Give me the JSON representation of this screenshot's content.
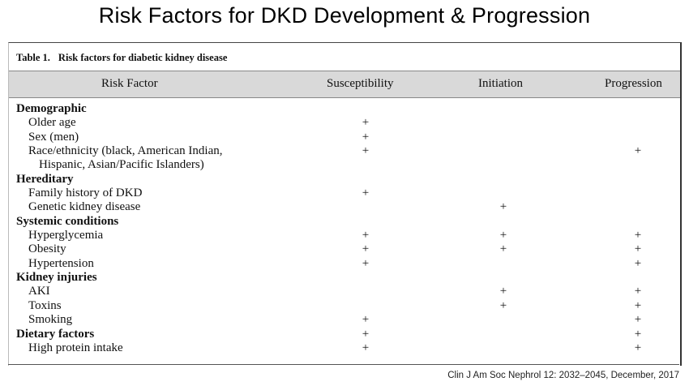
{
  "slide": {
    "title": "Risk Factors for DKD Development & Progression",
    "citation": "Clin J Am Soc Nephrol 12: 2032–2045, December, 2017"
  },
  "table": {
    "caption_label": "Table 1.",
    "caption_title": "Risk factors for diabetic kidney disease",
    "headers": [
      "Risk Factor",
      "Susceptibility",
      "Initiation",
      "Progression"
    ],
    "mark": "+",
    "rows": [
      {
        "type": "group",
        "label": "Demographic",
        "s": false,
        "i": false,
        "p": false
      },
      {
        "type": "item",
        "label": "Older age",
        "s": true,
        "i": false,
        "p": false
      },
      {
        "type": "item",
        "label": "Sex (men)",
        "s": true,
        "i": false,
        "p": false
      },
      {
        "type": "item",
        "label": "Race/ethnicity (black, American Indian,",
        "s": true,
        "i": false,
        "p": true
      },
      {
        "type": "cont",
        "label": "Hispanic, Asian/Pacific Islanders)",
        "s": false,
        "i": false,
        "p": false
      },
      {
        "type": "group",
        "label": "Hereditary",
        "s": false,
        "i": false,
        "p": false
      },
      {
        "type": "item",
        "label": "Family history of DKD",
        "s": true,
        "i": false,
        "p": false
      },
      {
        "type": "item",
        "label": "Genetic kidney disease",
        "s": false,
        "i": true,
        "p": false
      },
      {
        "type": "group",
        "label": "Systemic conditions",
        "s": false,
        "i": false,
        "p": false
      },
      {
        "type": "item",
        "label": "Hyperglycemia",
        "s": true,
        "i": true,
        "p": true
      },
      {
        "type": "item",
        "label": "Obesity",
        "s": true,
        "i": true,
        "p": true
      },
      {
        "type": "item",
        "label": "Hypertension",
        "s": true,
        "i": false,
        "p": true
      },
      {
        "type": "group",
        "label": "Kidney injuries",
        "s": false,
        "i": false,
        "p": false
      },
      {
        "type": "item",
        "label": "AKI",
        "s": false,
        "i": true,
        "p": true
      },
      {
        "type": "item",
        "label": "Toxins",
        "s": false,
        "i": true,
        "p": true
      },
      {
        "type": "item",
        "label": "Smoking",
        "s": true,
        "i": false,
        "p": true
      },
      {
        "type": "group",
        "label": "Dietary factors",
        "s": true,
        "i": false,
        "p": true
      },
      {
        "type": "item",
        "label": "High protein intake",
        "s": true,
        "i": false,
        "p": true
      }
    ]
  }
}
